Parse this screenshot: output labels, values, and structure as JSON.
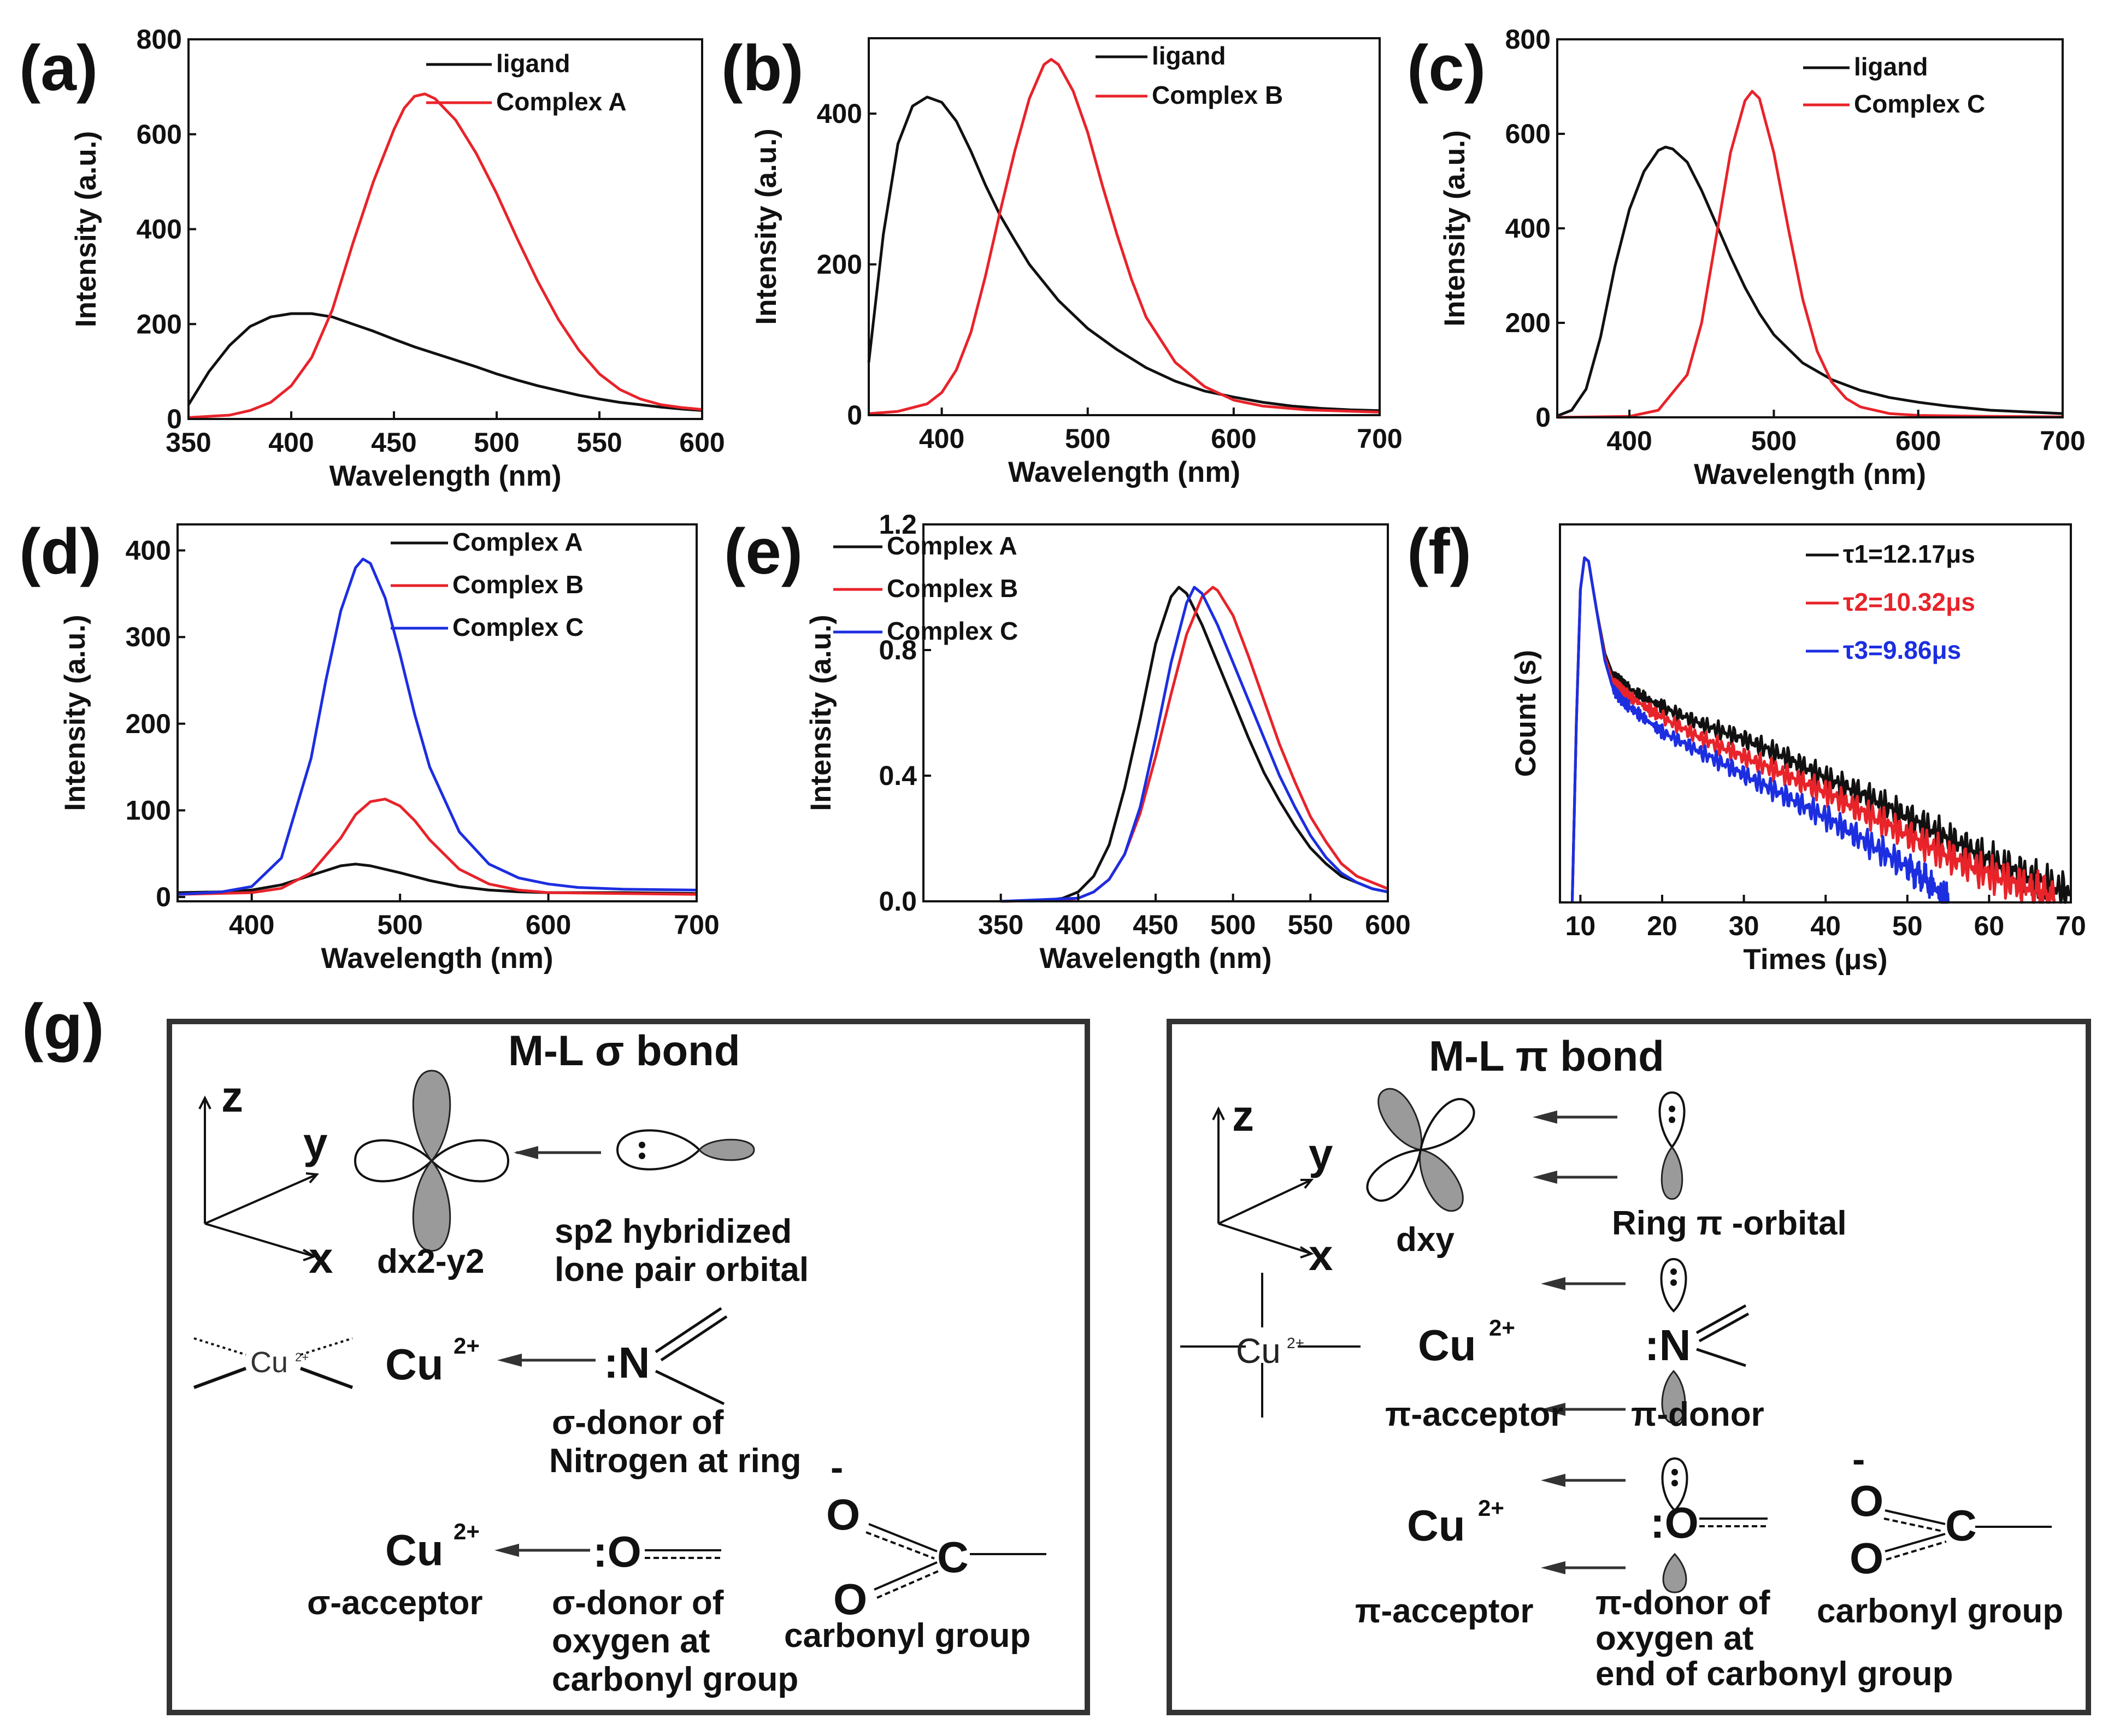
{
  "colors": {
    "black": "#111111",
    "red": "#e8232a",
    "blue": "#1c2ee0"
  },
  "chart_data": [
    {
      "panel": "(a)",
      "type": "line",
      "xlabel": "Wavelength (nm)",
      "ylabel": "Intensity (a.u.)",
      "xlim": [
        350,
        600
      ],
      "ylim": [
        0,
        800
      ],
      "xticks": [
        350,
        400,
        450,
        500,
        550,
        600
      ],
      "yticks": [
        0,
        200,
        400,
        600,
        800
      ],
      "legend_position": "top-right",
      "series": [
        {
          "name": "ligand",
          "color": "#111111",
          "x": [
            350,
            360,
            370,
            380,
            390,
            400,
            410,
            420,
            430,
            440,
            450,
            460,
            470,
            480,
            490,
            500,
            510,
            520,
            530,
            540,
            550,
            560,
            570,
            580,
            590,
            600
          ],
          "y": [
            30,
            100,
            155,
            195,
            215,
            222,
            222,
            215,
            200,
            185,
            168,
            152,
            138,
            124,
            110,
            95,
            82,
            70,
            60,
            50,
            42,
            35,
            30,
            25,
            21,
            18
          ]
        },
        {
          "name": "Complex A",
          "color": "#e8232a",
          "x": [
            350,
            370,
            380,
            390,
            400,
            410,
            420,
            430,
            440,
            450,
            455,
            460,
            465,
            470,
            480,
            490,
            500,
            510,
            520,
            530,
            540,
            550,
            560,
            570,
            580,
            590,
            600
          ],
          "y": [
            3,
            8,
            18,
            35,
            70,
            130,
            230,
            370,
            500,
            610,
            655,
            680,
            685,
            675,
            630,
            560,
            475,
            380,
            290,
            210,
            145,
            95,
            62,
            42,
            30,
            24,
            20
          ]
        }
      ]
    },
    {
      "panel": "(b)",
      "type": "line",
      "xlabel": "Wavelength (nm)",
      "ylabel": "Intensity (a.u.)",
      "xlim": [
        350,
        700
      ],
      "ylim": [
        0,
        500
      ],
      "xticks": [
        400,
        500,
        600,
        700
      ],
      "yticks": [
        0,
        200,
        400
      ],
      "legend_position": "top-right",
      "series": [
        {
          "name": "ligand",
          "color": "#111111",
          "x": [
            350,
            360,
            370,
            380,
            390,
            400,
            410,
            420,
            430,
            440,
            450,
            460,
            480,
            500,
            520,
            540,
            560,
            580,
            600,
            620,
            640,
            660,
            680,
            700
          ],
          "y": [
            70,
            240,
            360,
            410,
            422,
            415,
            390,
            350,
            305,
            265,
            232,
            200,
            152,
            115,
            87,
            63,
            45,
            32,
            24,
            17,
            12,
            9,
            7,
            6
          ]
        },
        {
          "name": "Complex B",
          "color": "#e8232a",
          "x": [
            350,
            370,
            390,
            400,
            410,
            420,
            430,
            440,
            450,
            460,
            470,
            475,
            480,
            490,
            500,
            510,
            520,
            530,
            540,
            560,
            580,
            600,
            620,
            650,
            700
          ],
          "y": [
            2,
            5,
            15,
            30,
            60,
            110,
            185,
            270,
            350,
            420,
            465,
            472,
            465,
            430,
            375,
            305,
            240,
            180,
            130,
            70,
            38,
            20,
            12,
            7,
            4
          ]
        }
      ]
    },
    {
      "panel": "(c)",
      "type": "line",
      "xlabel": "Wavelength (nm)",
      "ylabel": "Intensity (a.u.)",
      "xlim": [
        350,
        700
      ],
      "ylim": [
        0,
        800
      ],
      "xticks": [
        400,
        500,
        600,
        700
      ],
      "yticks": [
        0,
        200,
        400,
        600,
        800
      ],
      "legend_position": "top-right",
      "series": [
        {
          "name": "ligand",
          "color": "#111111",
          "x": [
            350,
            360,
            370,
            380,
            390,
            400,
            410,
            420,
            425,
            430,
            440,
            450,
            460,
            470,
            480,
            490,
            500,
            520,
            540,
            560,
            580,
            600,
            620,
            650,
            700
          ],
          "y": [
            3,
            15,
            60,
            170,
            320,
            440,
            520,
            565,
            572,
            568,
            540,
            480,
            410,
            340,
            275,
            220,
            175,
            115,
            80,
            57,
            42,
            32,
            24,
            15,
            8
          ]
        },
        {
          "name": "Complex C",
          "color": "#e8232a",
          "x": [
            350,
            400,
            420,
            440,
            450,
            460,
            470,
            480,
            485,
            490,
            500,
            510,
            520,
            530,
            540,
            550,
            560,
            580,
            600,
            650,
            700
          ],
          "y": [
            0,
            2,
            15,
            90,
            200,
            380,
            560,
            670,
            690,
            675,
            560,
            400,
            250,
            140,
            75,
            40,
            22,
            8,
            4,
            2,
            1
          ]
        }
      ]
    },
    {
      "panel": "(d)",
      "type": "line",
      "xlabel": "Wavelength (nm)",
      "ylabel": "Intensity (a.u.)",
      "xlim": [
        350,
        700
      ],
      "ylim": [
        -5,
        430
      ],
      "xticks": [
        400,
        500,
        600,
        700
      ],
      "yticks": [
        0,
        100,
        200,
        300,
        400
      ],
      "legend_position": "top-right",
      "series": [
        {
          "name": "Complex A",
          "color": "#111111",
          "x": [
            350,
            380,
            400,
            420,
            440,
            460,
            470,
            480,
            500,
            520,
            540,
            560,
            580,
            600,
            650,
            700
          ],
          "y": [
            5,
            6,
            8,
            14,
            25,
            36,
            38,
            36,
            28,
            19,
            12,
            8,
            6,
            5,
            5,
            4
          ]
        },
        {
          "name": "Complex B",
          "color": "#e8232a",
          "x": [
            350,
            400,
            420,
            440,
            460,
            470,
            480,
            490,
            500,
            510,
            520,
            540,
            560,
            580,
            600,
            650,
            700
          ],
          "y": [
            3,
            5,
            10,
            28,
            68,
            95,
            110,
            113,
            105,
            88,
            66,
            32,
            15,
            8,
            5,
            4,
            3
          ]
        },
        {
          "name": "Complex C",
          "color": "#1c2ee0",
          "x": [
            350,
            380,
            400,
            420,
            440,
            450,
            460,
            470,
            475,
            480,
            490,
            500,
            510,
            520,
            540,
            560,
            580,
            600,
            620,
            650,
            700
          ],
          "y": [
            3,
            6,
            12,
            45,
            160,
            250,
            330,
            380,
            390,
            385,
            345,
            280,
            210,
            150,
            75,
            38,
            22,
            15,
            11,
            9,
            8
          ]
        }
      ]
    },
    {
      "panel": "(e)",
      "type": "line",
      "xlabel": "Wavelength (nm)",
      "ylabel": "Intensity (a.u.)",
      "xlim": [
        300,
        600
      ],
      "ylim": [
        0,
        1.2
      ],
      "xticks": [
        350,
        400,
        450,
        500,
        550,
        600
      ],
      "ytick_labels": [
        "0.0",
        "0.4",
        "0.8",
        "1.2"
      ],
      "legend_position": "top-left",
      "series": [
        {
          "name": "Complex A",
          "color": "#111111",
          "x": [
            350,
            380,
            390,
            400,
            410,
            420,
            430,
            440,
            450,
            460,
            465,
            470,
            480,
            490,
            500,
            510,
            520,
            530,
            540,
            550,
            560,
            570,
            580,
            590,
            600
          ],
          "y": [
            0,
            0.003,
            0.01,
            0.03,
            0.08,
            0.18,
            0.36,
            0.58,
            0.82,
            0.97,
            1.0,
            0.98,
            0.88,
            0.76,
            0.64,
            0.52,
            0.41,
            0.32,
            0.24,
            0.17,
            0.12,
            0.08,
            0.06,
            0.04,
            0.03
          ]
        },
        {
          "name": "Complex B",
          "color": "#e8232a",
          "x": [
            350,
            390,
            400,
            410,
            420,
            430,
            440,
            450,
            460,
            470,
            480,
            487,
            490,
            500,
            510,
            520,
            530,
            540,
            550,
            560,
            570,
            580,
            590,
            600
          ],
          "y": [
            0,
            0.003,
            0.01,
            0.03,
            0.07,
            0.15,
            0.28,
            0.46,
            0.66,
            0.85,
            0.97,
            1.0,
            0.99,
            0.91,
            0.78,
            0.64,
            0.5,
            0.38,
            0.27,
            0.19,
            0.12,
            0.08,
            0.06,
            0.04
          ]
        },
        {
          "name": "Complex C",
          "color": "#1c2ee0",
          "x": [
            350,
            400,
            410,
            420,
            430,
            440,
            450,
            460,
            470,
            475,
            480,
            490,
            500,
            510,
            520,
            530,
            540,
            550,
            560,
            570,
            580,
            590,
            600
          ],
          "y": [
            0,
            0.01,
            0.03,
            0.07,
            0.15,
            0.3,
            0.52,
            0.76,
            0.95,
            1.0,
            0.98,
            0.88,
            0.76,
            0.64,
            0.52,
            0.4,
            0.3,
            0.21,
            0.14,
            0.09,
            0.06,
            0.04,
            0.03
          ]
        }
      ]
    },
    {
      "panel": "(f)",
      "type": "line",
      "xlabel": "Times (μs)",
      "ylabel": "Count (s)",
      "xlim": [
        7.5,
        70
      ],
      "ylim": [
        0,
        1.0
      ],
      "yscale": "log",
      "xticks": [
        10,
        20,
        30,
        40,
        50,
        60,
        70
      ],
      "legend_position": "top-right",
      "series": [
        {
          "name": "τ1=12.17μs",
          "color": "#111111",
          "x": [
            9,
            9.5,
            10,
            10.5,
            11,
            12,
            13,
            14,
            15,
            16,
            20,
            25,
            30,
            35,
            40,
            45,
            50,
            55,
            60,
            65,
            70
          ],
          "y": [
            0.0,
            0.5,
            0.88,
            0.97,
            0.96,
            0.82,
            0.7,
            0.64,
            0.62,
            0.6,
            0.55,
            0.5,
            0.46,
            0.41,
            0.35,
            0.3,
            0.24,
            0.18,
            0.12,
            0.07,
            0.02
          ]
        },
        {
          "name": "τ2=10.32μs",
          "color": "#e8232a",
          "x": [
            9,
            9.5,
            10,
            10.5,
            11,
            12,
            13,
            14,
            15,
            16,
            20,
            25,
            30,
            35,
            40,
            45,
            50,
            55,
            60,
            65,
            68
          ],
          "y": [
            0.0,
            0.5,
            0.88,
            0.97,
            0.96,
            0.82,
            0.69,
            0.62,
            0.6,
            0.58,
            0.52,
            0.46,
            0.41,
            0.36,
            0.31,
            0.25,
            0.19,
            0.13,
            0.08,
            0.04,
            0.01
          ]
        },
        {
          "name": "τ3=9.86μs",
          "color": "#1c2ee0",
          "x": [
            9,
            9.5,
            10,
            10.5,
            11,
            12,
            13,
            14,
            15,
            16,
            20,
            25,
            30,
            35,
            40,
            45,
            50,
            53,
            55
          ],
          "y": [
            0.0,
            0.5,
            0.88,
            0.97,
            0.96,
            0.82,
            0.68,
            0.6,
            0.57,
            0.55,
            0.48,
            0.42,
            0.36,
            0.3,
            0.24,
            0.17,
            0.1,
            0.05,
            0.0
          ]
        }
      ]
    }
  ],
  "diagram": {
    "panel": "(g)",
    "sigma": {
      "title": "M-L σ bond",
      "axis_z": "z",
      "axis_y": "y",
      "axis_x": "x",
      "orbital_d": "dx2-y2",
      "orbital_sp2": [
        "sp2 hybridized",
        "lone pair orbital"
      ],
      "cu_small": "Cu",
      "cu_small_sup": "2+",
      "cu": "Cu",
      "cu_sup": "2+",
      "n_atom": ":N",
      "n_caption": [
        "σ-donor of",
        "Nitrogen at ring"
      ],
      "acceptor": "σ-acceptor",
      "o_atom": ":O",
      "o_caption": [
        "σ-donor of",
        "oxygen at",
        "carbonyl group"
      ],
      "carboxyl_o_minus": "O",
      "minus": "-",
      "carboxyl_o": "O",
      "carboxyl_c": "C",
      "carboxyl_caption": "carbonyl group"
    },
    "pi": {
      "title": "M-L π bond",
      "axis_z": "z",
      "axis_y": "y",
      "axis_x": "x",
      "orbital_d": "dxy",
      "ring_caption": "Ring π -orbital",
      "cu_small": "Cu",
      "cu_small_sup": "2+",
      "cu": "Cu",
      "cu_sup": "2+",
      "n_atom": ":N",
      "acceptor": "π-acceptor",
      "donor": "π-donor",
      "o_atom": ":O",
      "o_caption": [
        "π-donor of",
        "oxygen at",
        "end of carbonyl group"
      ],
      "carboxyl_o_minus": "O",
      "minus": "-",
      "carboxyl_o": "O",
      "carboxyl_c": "C",
      "carboxyl_caption": "carbonyl group"
    }
  }
}
